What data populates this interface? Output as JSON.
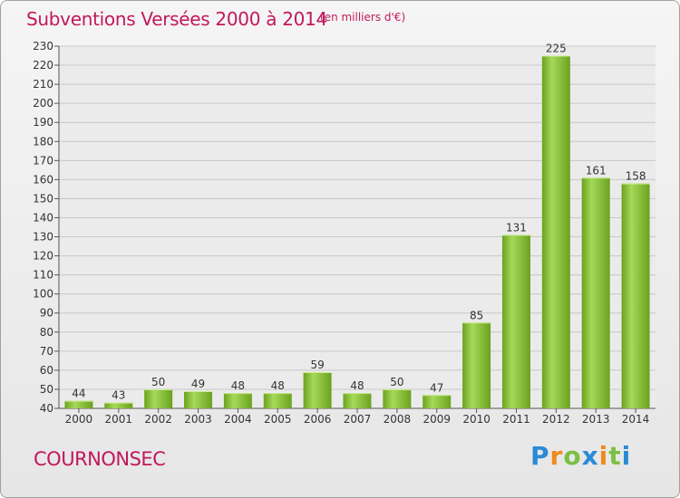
{
  "header": {
    "title": "Subventions Versées 2000 à 2014",
    "subtitle": "(en milliers d'€)"
  },
  "footer": {
    "commune": "COURNONSEC",
    "logo_letters": [
      "P",
      "r",
      "o",
      "x",
      "i",
      "t",
      "i"
    ]
  },
  "colors": {
    "title": "#c2185b",
    "bar_light": "#a6d95a",
    "bar_dark": "#6aa21e",
    "grid": "#c8c8c8"
  },
  "chart_data": {
    "type": "bar",
    "categories": [
      "2000",
      "2001",
      "2002",
      "2003",
      "2004",
      "2005",
      "2006",
      "2007",
      "2008",
      "2009",
      "2010",
      "2011",
      "2012",
      "2013",
      "2014"
    ],
    "values": [
      44,
      43,
      50,
      49,
      48,
      48,
      59,
      48,
      50,
      47,
      85,
      131,
      225,
      161,
      158
    ],
    "ylim": [
      40,
      230
    ],
    "yticks": [
      40,
      50,
      60,
      70,
      80,
      90,
      100,
      110,
      120,
      130,
      140,
      150,
      160,
      170,
      180,
      190,
      200,
      210,
      220,
      230
    ],
    "grid": true
  }
}
